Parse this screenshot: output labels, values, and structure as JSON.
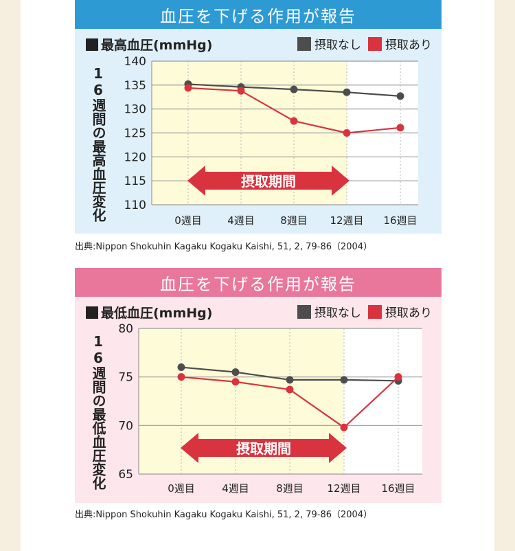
{
  "charts": [
    {
      "banner": "血圧を下げる作用が報告",
      "subtitle": "最高血圧(mmHg)",
      "vertical_label": "16週間の最高血圧変化",
      "period_label": "摂取期間",
      "source": "出典:Nippon Shokuhin Kagaku Kogaku Kaishi, 51, 2, 79-86（2004）"
    },
    {
      "banner": "血圧を下げる作用が報告",
      "subtitle": "最低血圧(mmHg)",
      "vertical_label": "16週間の最低血圧変化",
      "period_label": "摂取期間",
      "source": "出典:Nippon Shokuhin Kagaku Kogaku Kaishi, 51, 2, 79-86（2004）"
    }
  ],
  "colors": {
    "no_intake": "#4d4d4d",
    "intake": "#d9333f",
    "period_fill": "#fdfbd8",
    "arrow": "#d9333f"
  },
  "chart_data": [
    {
      "type": "line",
      "title": "最高血圧(mmHg)",
      "ylabel": "16週間の最高血圧変化",
      "categories": [
        "0週目",
        "4週目",
        "8週目",
        "12週目",
        "16週目"
      ],
      "yticks": [
        110,
        115,
        120,
        125,
        130,
        135,
        140
      ],
      "ylim": [
        110,
        140
      ],
      "grid": true,
      "legend_position": "top-right",
      "highlight_range": [
        "0週目",
        "12週目"
      ],
      "series": [
        {
          "name": "摂取なし",
          "values": [
            135.2,
            134.6,
            134.1,
            133.5,
            132.7
          ]
        },
        {
          "name": "摂取あり",
          "values": [
            134.4,
            133.8,
            127.5,
            125.0,
            126.1
          ]
        }
      ]
    },
    {
      "type": "line",
      "title": "最低血圧(mmHg)",
      "ylabel": "16週間の最低血圧変化",
      "categories": [
        "0週目",
        "4週目",
        "8週目",
        "12週目",
        "16週目"
      ],
      "yticks": [
        65,
        70,
        75,
        80
      ],
      "ylim": [
        65,
        80
      ],
      "grid": true,
      "legend_position": "top-right",
      "highlight_range": [
        "0週目",
        "12週目"
      ],
      "series": [
        {
          "name": "摂取なし",
          "values": [
            76.0,
            75.5,
            74.7,
            74.7,
            74.6
          ]
        },
        {
          "name": "摂取あり",
          "values": [
            75.0,
            74.5,
            73.7,
            69.8,
            75.0
          ]
        }
      ]
    }
  ]
}
